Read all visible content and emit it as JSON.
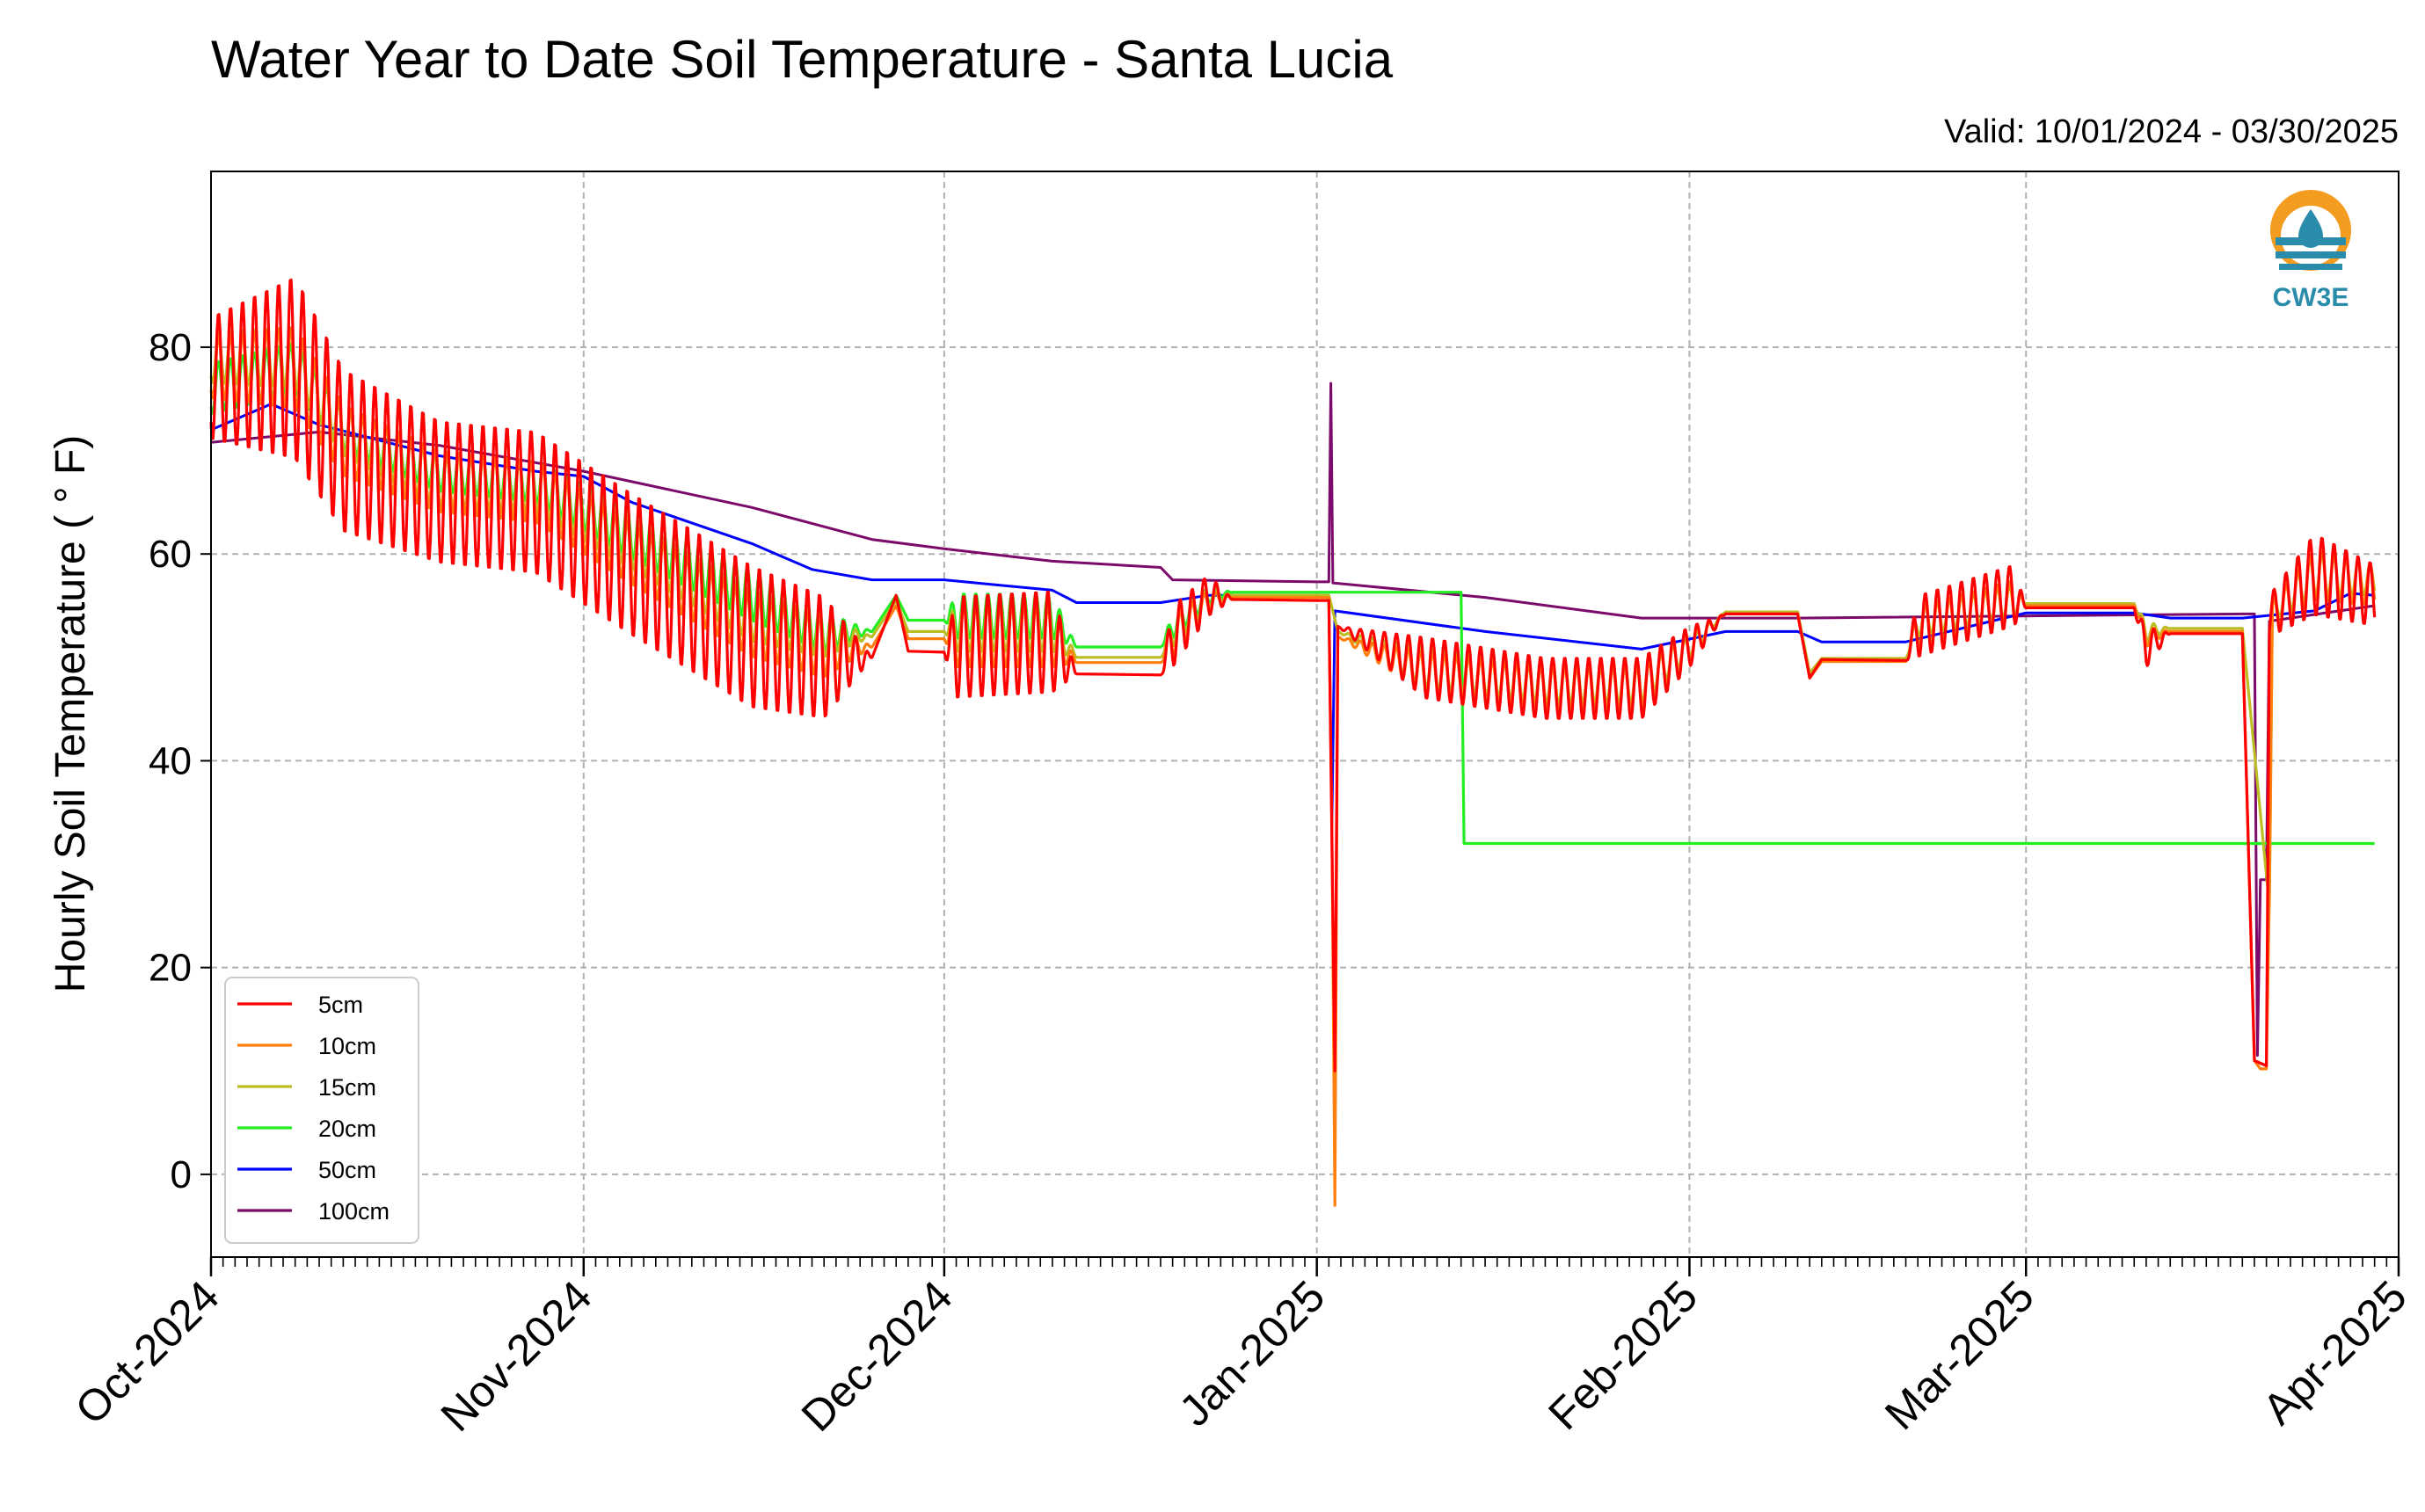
{
  "chart_data": {
    "type": "line",
    "title": "Water Year to Date Soil Temperature - Santa Lucia",
    "subtitle": "Valid: 10/01/2024 - 03/30/2025",
    "ylabel": "Hourly Soil Temperature ($^\\circ$F)",
    "ylabel_display": "Hourly Soil Temperature ( ° F)",
    "xlabel": "",
    "ylim": [
      -8,
      97
    ],
    "xlim": [
      "2024-10-01",
      "2025-04-01"
    ],
    "yticks": [
      0,
      20,
      40,
      60,
      80
    ],
    "xticks": [
      {
        "date": "2024-10-01",
        "label": "Oct-2024"
      },
      {
        "date": "2024-11-01",
        "label": "Nov-2024"
      },
      {
        "date": "2024-12-01",
        "label": "Dec-2024"
      },
      {
        "date": "2025-01-01",
        "label": "Jan-2025"
      },
      {
        "date": "2025-02-01",
        "label": "Feb-2025"
      },
      {
        "date": "2025-03-01",
        "label": "Mar-2025"
      },
      {
        "date": "2025-04-01",
        "label": "Apr-2025"
      }
    ],
    "grid": true,
    "legend_position": "bottom-left",
    "logo": {
      "text": "CW3E",
      "color": "#2a8cab",
      "accent": "#f39c1f"
    },
    "series": [
      {
        "name": "5cm",
        "color": "#ff0000",
        "stroke": 3.2,
        "points": [
          [
            "2024-10-01",
            77,
            6
          ],
          [
            "2024-10-08",
            78,
            9
          ],
          [
            "2024-10-12",
            70,
            8
          ],
          [
            "2024-10-20",
            66,
            7
          ],
          [
            "2024-10-28",
            65,
            7
          ],
          [
            "2024-11-05",
            59,
            7
          ],
          [
            "2024-11-15",
            52,
            7
          ],
          [
            "2024-11-21",
            50,
            6
          ],
          [
            "2024-11-25",
            50,
            0
          ],
          [
            "2024-11-27",
            56,
            0
          ],
          [
            "2024-11-28",
            50.6,
            0
          ],
          [
            "2024-12-01",
            50.5,
            0
          ],
          [
            "2024-12-02",
            51,
            5
          ],
          [
            "2024-12-10",
            51.5,
            5
          ],
          [
            "2024-12-12",
            48.4,
            0
          ],
          [
            "2024-12-19",
            48.3,
            0
          ],
          [
            "2024-12-20",
            52,
            3
          ],
          [
            "2024-12-23",
            56,
            2
          ],
          [
            "2024-12-25",
            55.6,
            0
          ],
          [
            "2025-01-01",
            55.5,
            0
          ],
          [
            "2025-01-02",
            55.5,
            0
          ],
          [
            "2025-01-02 12",
            10,
            0
          ],
          [
            "2025-01-02 18",
            53,
            0
          ],
          [
            "2025-01-10",
            49,
            3
          ],
          [
            "2025-01-20",
            47,
            3
          ],
          [
            "2025-01-28",
            47,
            3
          ],
          [
            "2025-02-01",
            51,
            2
          ],
          [
            "2025-02-04",
            54.2,
            0
          ],
          [
            "2025-02-10",
            54.2,
            0
          ],
          [
            "2025-02-11",
            48,
            0
          ],
          [
            "2025-02-12",
            49.8,
            0
          ],
          [
            "2025-02-19",
            49.7,
            0
          ],
          [
            "2025-02-20",
            53,
            3
          ],
          [
            "2025-02-28",
            56,
            3
          ],
          [
            "2025-03-01",
            54.8,
            0
          ],
          [
            "2025-03-10",
            54.8,
            0
          ],
          [
            "2025-03-11",
            51,
            2
          ],
          [
            "2025-03-13",
            52.3,
            0
          ],
          [
            "2025-03-19",
            52.3,
            0
          ],
          [
            "2025-03-20",
            11,
            0
          ],
          [
            "2025-03-21",
            10.5,
            0
          ],
          [
            "2025-03-21 06",
            54,
            2
          ],
          [
            "2025-03-25",
            58,
            4
          ],
          [
            "2025-03-30",
            56,
            3
          ]
        ]
      },
      {
        "name": "10cm",
        "color": "#ff7f0e",
        "stroke": 3.2,
        "points": [
          [
            "2024-10-01",
            78,
            3
          ],
          [
            "2024-10-08",
            78,
            4
          ],
          [
            "2024-10-12",
            71,
            3.5
          ],
          [
            "2024-10-20",
            67,
            3
          ],
          [
            "2024-10-28",
            66,
            3
          ],
          [
            "2024-11-05",
            60,
            3
          ],
          [
            "2024-11-15",
            53,
            3
          ],
          [
            "2024-11-21",
            51,
            3
          ],
          [
            "2024-11-25",
            51,
            0
          ],
          [
            "2024-11-27",
            55,
            0
          ],
          [
            "2024-11-28",
            51.8,
            0
          ],
          [
            "2024-12-01",
            51.8,
            0
          ],
          [
            "2024-12-02",
            52,
            3
          ],
          [
            "2024-12-10",
            52,
            3
          ],
          [
            "2024-12-12",
            49.5,
            0
          ],
          [
            "2024-12-19",
            49.5,
            0
          ],
          [
            "2024-12-20",
            52,
            2
          ],
          [
            "2024-12-23",
            55.5,
            1
          ],
          [
            "2024-12-25",
            55.8,
            0
          ],
          [
            "2025-01-01",
            55.8,
            0
          ],
          [
            "2025-01-02",
            55.8,
            0
          ],
          [
            "2025-01-02 06",
            33.5,
            0
          ],
          [
            "2025-01-02 12",
            -3,
            0
          ],
          [
            "2025-01-02 18",
            52,
            0
          ],
          [
            "2025-01-10",
            48.5,
            2
          ],
          [
            "2025-01-20",
            47,
            2
          ],
          [
            "2025-01-28",
            47,
            2
          ],
          [
            "2025-02-01",
            51,
            1.5
          ],
          [
            "2025-02-04",
            54.2,
            0
          ],
          [
            "2025-02-10",
            54.2,
            0
          ],
          [
            "2025-02-11",
            48,
            0
          ],
          [
            "2025-02-12",
            49.6,
            0
          ],
          [
            "2025-02-19",
            49.6,
            0
          ],
          [
            "2025-02-20",
            53,
            2
          ],
          [
            "2025-02-28",
            55.5,
            2
          ],
          [
            "2025-03-01",
            55,
            0
          ],
          [
            "2025-03-10",
            55,
            0
          ],
          [
            "2025-03-11",
            52,
            1
          ],
          [
            "2025-03-13",
            52.5,
            0
          ],
          [
            "2025-03-19",
            52.5,
            0
          ],
          [
            "2025-03-20",
            11,
            0
          ],
          [
            "2025-03-20 12",
            10.2,
            0
          ],
          [
            "2025-03-21",
            10.2,
            0
          ],
          [
            "2025-03-21 06",
            27,
            0
          ],
          [
            "2025-03-21 12",
            54,
            1.5
          ],
          [
            "2025-03-25",
            58,
            2.5
          ],
          [
            "2025-03-30",
            57,
            2
          ]
        ]
      },
      {
        "name": "15cm",
        "color": "#bcbd22",
        "stroke": 3.2,
        "points": [
          [
            "2024-10-01",
            79,
            2.5
          ],
          [
            "2024-10-08",
            79,
            3
          ],
          [
            "2024-10-12",
            72,
            2.5
          ],
          [
            "2024-10-20",
            67,
            2.5
          ],
          [
            "2024-10-28",
            66.5,
            2.5
          ],
          [
            "2024-11-05",
            61,
            2.5
          ],
          [
            "2024-11-15",
            54,
            2.5
          ],
          [
            "2024-11-21",
            52,
            2
          ],
          [
            "2024-11-25",
            52,
            0
          ],
          [
            "2024-11-27",
            55.5,
            0
          ],
          [
            "2024-11-28",
            52.5,
            0
          ],
          [
            "2024-12-01",
            52.5,
            0
          ],
          [
            "2024-12-02",
            53,
            2.5
          ],
          [
            "2024-12-10",
            53,
            2.5
          ],
          [
            "2024-12-12",
            50,
            0
          ],
          [
            "2024-12-19",
            50,
            0
          ],
          [
            "2024-12-20",
            52.5,
            1.5
          ],
          [
            "2024-12-23",
            55.8,
            1
          ],
          [
            "2024-12-25",
            56,
            0
          ],
          [
            "2025-01-01",
            56,
            0
          ],
          [
            "2025-01-02",
            56,
            0
          ],
          [
            "2025-01-02 18",
            52.5,
            0
          ],
          [
            "2025-01-10",
            49,
            2
          ],
          [
            "2025-01-20",
            47.5,
            2
          ],
          [
            "2025-01-28",
            47.5,
            2
          ],
          [
            "2025-02-01",
            51,
            1
          ],
          [
            "2025-02-04",
            54.4,
            0
          ],
          [
            "2025-02-10",
            54.4,
            0
          ],
          [
            "2025-02-11",
            48.5,
            0
          ],
          [
            "2025-02-12",
            49.9,
            0
          ],
          [
            "2025-02-19",
            49.9,
            0
          ],
          [
            "2025-02-20",
            53.5,
            1.5
          ],
          [
            "2025-02-28",
            55.5,
            1.5
          ],
          [
            "2025-03-01",
            55.2,
            0
          ],
          [
            "2025-03-10",
            55.2,
            0
          ],
          [
            "2025-03-11",
            52.5,
            1
          ],
          [
            "2025-03-13",
            52.8,
            0
          ],
          [
            "2025-03-19",
            52.8,
            0
          ],
          [
            "2025-03-21 06",
            26,
            0
          ],
          [
            "2025-03-21 12",
            54.5,
            1
          ],
          [
            "2025-03-25",
            58,
            2
          ],
          [
            "2025-03-30",
            57.5,
            1.5
          ]
        ]
      },
      {
        "name": "20cm",
        "color": "#22ee22",
        "stroke": 3.2,
        "points": [
          [
            "2024-10-01",
            76,
            2.5
          ],
          [
            "2024-10-08",
            78,
            2.5
          ],
          [
            "2024-10-12",
            72,
            2
          ],
          [
            "2024-10-20",
            68,
            2
          ],
          [
            "2024-10-28",
            67,
            2
          ],
          [
            "2024-11-05",
            62,
            2.5
          ],
          [
            "2024-11-15",
            56,
            2.5
          ],
          [
            "2024-11-21",
            52.5,
            2
          ],
          [
            "2024-11-25",
            52.5,
            0
          ],
          [
            "2024-11-27",
            56,
            0
          ],
          [
            "2024-11-28",
            53.6,
            0
          ],
          [
            "2024-12-01",
            53.6,
            0
          ],
          [
            "2024-12-02",
            54,
            2.2
          ],
          [
            "2024-12-10",
            54,
            2.2
          ],
          [
            "2024-12-12",
            51,
            0
          ],
          [
            "2024-12-19",
            51,
            0
          ],
          [
            "2024-12-20",
            53,
            1.2
          ],
          [
            "2024-12-23",
            56,
            0.8
          ],
          [
            "2024-12-25",
            56.3,
            0
          ],
          [
            "2025-01-01",
            56.3,
            0
          ],
          [
            "2025-01-13",
            56.3,
            0
          ],
          [
            "2025-01-13 06",
            32,
            0
          ],
          [
            "2025-03-30",
            32,
            0
          ]
        ]
      },
      {
        "name": "50cm",
        "color": "#0000ff",
        "stroke": 3.0,
        "points": [
          [
            "2024-10-01",
            72,
            0
          ],
          [
            "2024-10-06",
            74.5,
            0
          ],
          [
            "2024-10-10",
            72.5,
            0
          ],
          [
            "2024-10-20",
            69.5,
            0
          ],
          [
            "2024-10-28",
            68,
            0
          ],
          [
            "2024-11-01",
            67.5,
            0
          ],
          [
            "2024-11-05",
            65,
            0
          ],
          [
            "2024-11-15",
            61,
            0
          ],
          [
            "2024-11-20",
            58.5,
            0
          ],
          [
            "2024-11-25",
            57.5,
            0
          ],
          [
            "2024-12-01",
            57.5,
            0
          ],
          [
            "2024-12-10",
            56.5,
            0
          ],
          [
            "2024-12-12",
            55.3,
            0
          ],
          [
            "2024-12-19",
            55.3,
            0
          ],
          [
            "2024-12-23",
            56,
            0
          ],
          [
            "2024-12-25",
            56,
            0
          ],
          [
            "2025-01-01",
            56,
            0
          ],
          [
            "2025-01-02",
            56,
            0
          ],
          [
            "2025-01-02 06",
            34,
            0
          ],
          [
            "2025-01-02 12",
            54.5,
            0
          ],
          [
            "2025-01-15",
            52.5,
            0
          ],
          [
            "2025-01-28",
            50.8,
            0
          ],
          [
            "2025-02-04",
            52.5,
            0
          ],
          [
            "2025-02-10",
            52.5,
            0
          ],
          [
            "2025-02-12",
            51.5,
            0
          ],
          [
            "2025-02-19",
            51.5,
            0
          ],
          [
            "2025-03-01",
            54.3,
            0
          ],
          [
            "2025-03-10",
            54.3,
            0
          ],
          [
            "2025-03-13",
            53.8,
            0
          ],
          [
            "2025-03-19",
            53.8,
            0
          ],
          [
            "2025-03-25",
            54.5,
            0
          ],
          [
            "2025-03-28",
            56.2,
            0
          ],
          [
            "2025-03-30",
            56,
            0
          ]
        ]
      },
      {
        "name": "100cm",
        "color": "#7b0a6b",
        "stroke": 3.0,
        "points": [
          [
            "2024-10-01",
            70.8,
            0
          ],
          [
            "2024-10-10",
            71.8,
            0
          ],
          [
            "2024-10-20",
            70.5,
            0
          ],
          [
            "2024-11-01",
            68,
            0
          ],
          [
            "2024-11-15",
            64.5,
            0
          ],
          [
            "2024-11-25",
            61.4,
            0
          ],
          [
            "2024-12-01",
            60.5,
            0
          ],
          [
            "2024-12-10",
            59.3,
            0
          ],
          [
            "2024-12-19",
            58.7,
            0
          ],
          [
            "2024-12-20",
            57.5,
            0
          ],
          [
            "2025-01-01",
            57.3,
            0
          ],
          [
            "2025-01-02",
            57.3,
            0
          ],
          [
            "2025-01-02 04",
            76.5,
            0
          ],
          [
            "2025-01-02 08",
            57.2,
            0
          ],
          [
            "2025-01-15",
            55.8,
            0
          ],
          [
            "2025-01-28",
            53.8,
            0
          ],
          [
            "2025-02-10",
            53.8,
            0
          ],
          [
            "2025-03-19",
            54.2,
            0
          ],
          [
            "2025-03-20",
            54.2,
            0
          ],
          [
            "2025-03-20 06",
            11.5,
            0
          ],
          [
            "2025-03-20 12",
            28.5,
            0
          ],
          [
            "2025-03-21",
            28.5,
            0
          ],
          [
            "2025-03-21 06",
            53.5,
            0
          ],
          [
            "2025-03-30",
            55,
            0
          ]
        ]
      }
    ]
  }
}
